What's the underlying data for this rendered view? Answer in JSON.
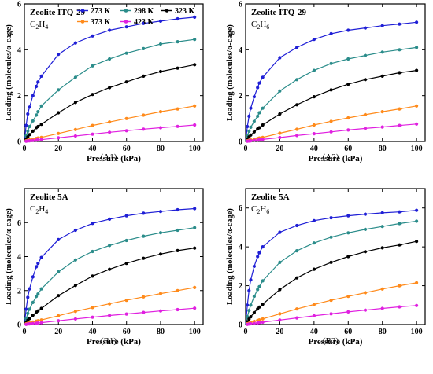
{
  "legend": {
    "series": [
      {
        "name": "273 K",
        "color": "#1f1fd6"
      },
      {
        "name": "298 K",
        "color": "#2a8c8a"
      },
      {
        "name": "323 K",
        "color": "#000000"
      },
      {
        "name": "373 K",
        "color": "#ff8a1a"
      },
      {
        "name": "423 K",
        "color": "#e020e0"
      }
    ]
  },
  "chart_data": [
    {
      "type": "scatter",
      "panel_label": "(A1)",
      "title": "Zeolite ITQ-29",
      "gas": "C2H4",
      "gas_base": "C",
      "gas_sub1": "2",
      "gas_mid": "H",
      "gas_sub2": "4",
      "xlabel": "Pressure (kPa)",
      "ylabel": "Loading (molecules/α-cage)",
      "xlim": [
        0,
        105
      ],
      "ylim": [
        0,
        6
      ],
      "xticks": [
        "0",
        "20",
        "40",
        "60",
        "80",
        "100"
      ],
      "yticks": [
        "0",
        "2",
        "4",
        "6"
      ],
      "legend_shown": true,
      "x": [
        1,
        2,
        3,
        5,
        7,
        8,
        10,
        20,
        30,
        40,
        50,
        60,
        70,
        80,
        90,
        100
      ],
      "series": [
        {
          "name": "273 K",
          "values": [
            0.7,
            1.2,
            1.5,
            2.0,
            2.4,
            2.6,
            2.85,
            3.8,
            4.3,
            4.6,
            4.85,
            5.0,
            5.15,
            5.25,
            5.35,
            5.42
          ]
        },
        {
          "name": "298 K",
          "values": [
            0.25,
            0.45,
            0.65,
            0.9,
            1.15,
            1.3,
            1.55,
            2.25,
            2.8,
            3.3,
            3.6,
            3.85,
            4.05,
            4.25,
            4.35,
            4.45
          ]
        },
        {
          "name": "323 K",
          "values": [
            0.1,
            0.2,
            0.3,
            0.45,
            0.6,
            0.65,
            0.75,
            1.25,
            1.7,
            2.05,
            2.35,
            2.6,
            2.85,
            3.05,
            3.2,
            3.35
          ]
        },
        {
          "name": "373 K",
          "values": [
            0.03,
            0.05,
            0.07,
            0.1,
            0.13,
            0.15,
            0.18,
            0.35,
            0.52,
            0.7,
            0.85,
            1.0,
            1.15,
            1.3,
            1.42,
            1.55
          ]
        },
        {
          "name": "423 K",
          "values": [
            0.01,
            0.02,
            0.03,
            0.04,
            0.06,
            0.07,
            0.08,
            0.16,
            0.24,
            0.32,
            0.4,
            0.47,
            0.54,
            0.6,
            0.66,
            0.72
          ]
        }
      ]
    },
    {
      "type": "scatter",
      "panel_label": "(A2)",
      "title": "Zeolite ITQ-29",
      "gas": "C2H6",
      "gas_base": "C",
      "gas_sub1": "2",
      "gas_mid": "H",
      "gas_sub2": "6",
      "xlabel": "Pressure (kPa)",
      "ylabel": "Loading (molecules/α-cage)",
      "xlim": [
        0,
        105
      ],
      "ylim": [
        0,
        6
      ],
      "xticks": [
        "0",
        "20",
        "40",
        "60",
        "80",
        "100"
      ],
      "yticks": [
        "0",
        "2",
        "4",
        "6"
      ],
      "legend_shown": false,
      "x": [
        1,
        2,
        3,
        5,
        7,
        8,
        10,
        20,
        30,
        40,
        50,
        60,
        70,
        80,
        90,
        100
      ],
      "series": [
        {
          "name": "273 K",
          "values": [
            0.65,
            1.1,
            1.45,
            1.95,
            2.35,
            2.55,
            2.8,
            3.65,
            4.1,
            4.45,
            4.7,
            4.85,
            4.95,
            5.05,
            5.12,
            5.2
          ]
        },
        {
          "name": "298 K",
          "values": [
            0.25,
            0.45,
            0.62,
            0.88,
            1.1,
            1.25,
            1.45,
            2.2,
            2.7,
            3.1,
            3.4,
            3.6,
            3.75,
            3.9,
            4.0,
            4.1
          ]
        },
        {
          "name": "323 K",
          "values": [
            0.1,
            0.2,
            0.28,
            0.42,
            0.55,
            0.6,
            0.72,
            1.2,
            1.6,
            1.95,
            2.25,
            2.5,
            2.7,
            2.85,
            3.0,
            3.1
          ]
        },
        {
          "name": "373 K",
          "values": [
            0.03,
            0.05,
            0.07,
            0.1,
            0.13,
            0.15,
            0.18,
            0.36,
            0.53,
            0.72,
            0.88,
            1.03,
            1.17,
            1.3,
            1.42,
            1.55
          ]
        },
        {
          "name": "423 K",
          "values": [
            0.01,
            0.02,
            0.03,
            0.05,
            0.06,
            0.07,
            0.09,
            0.17,
            0.26,
            0.34,
            0.42,
            0.5,
            0.57,
            0.63,
            0.7,
            0.76
          ]
        }
      ]
    },
    {
      "type": "scatter",
      "panel_label": "(B1)",
      "title": "Zeolite 5A",
      "gas": "C2H4",
      "gas_base": "C",
      "gas_sub1": "2",
      "gas_mid": "H",
      "gas_sub2": "4",
      "xlabel": "Pressure (kPa)",
      "ylabel": "Loading (molecules/α-cage)",
      "xlim": [
        0,
        105
      ],
      "ylim": [
        0,
        8
      ],
      "xticks": [
        "0",
        "20",
        "40",
        "60",
        "80",
        "100"
      ],
      "yticks": [
        "0",
        "2",
        "4",
        "6"
      ],
      "legend_shown": false,
      "x": [
        1,
        2,
        3,
        5,
        7,
        8,
        10,
        20,
        30,
        40,
        50,
        60,
        70,
        80,
        90,
        100
      ],
      "series": [
        {
          "name": "273 K",
          "values": [
            0.9,
            1.6,
            2.1,
            2.8,
            3.4,
            3.6,
            3.95,
            5.0,
            5.55,
            5.95,
            6.2,
            6.4,
            6.55,
            6.65,
            6.75,
            6.82
          ]
        },
        {
          "name": "298 K",
          "values": [
            0.35,
            0.65,
            0.9,
            1.3,
            1.65,
            1.8,
            2.1,
            3.1,
            3.8,
            4.3,
            4.65,
            4.95,
            5.2,
            5.4,
            5.55,
            5.7
          ]
        },
        {
          "name": "323 K",
          "values": [
            0.12,
            0.25,
            0.35,
            0.55,
            0.72,
            0.8,
            0.95,
            1.7,
            2.3,
            2.85,
            3.25,
            3.6,
            3.9,
            4.15,
            4.35,
            4.5
          ]
        },
        {
          "name": "373 K",
          "values": [
            0.04,
            0.07,
            0.1,
            0.15,
            0.2,
            0.22,
            0.27,
            0.52,
            0.77,
            1.0,
            1.22,
            1.43,
            1.63,
            1.82,
            2.0,
            2.18
          ]
        },
        {
          "name": "423 K",
          "values": [
            0.01,
            0.03,
            0.04,
            0.06,
            0.08,
            0.09,
            0.11,
            0.22,
            0.33,
            0.43,
            0.53,
            0.62,
            0.71,
            0.8,
            0.88,
            0.96
          ]
        }
      ]
    },
    {
      "type": "scatter",
      "panel_label": "(B2)",
      "title": "Zeolite 5A",
      "gas": "C2H6",
      "gas_base": "C",
      "gas_sub1": "2",
      "gas_mid": "H",
      "gas_sub2": "6",
      "xlabel": "Pressure (kPa)",
      "ylabel": "Loading (molecules/α-cage)",
      "xlim": [
        0,
        105
      ],
      "ylim": [
        0,
        7
      ],
      "xticks": [
        "0",
        "20",
        "40",
        "60",
        "80",
        "100"
      ],
      "yticks": [
        "0",
        "2",
        "4",
        "6"
      ],
      "legend_shown": false,
      "x": [
        1,
        2,
        3,
        5,
        7,
        8,
        10,
        20,
        30,
        40,
        50,
        60,
        70,
        80,
        90,
        100
      ],
      "series": [
        {
          "name": "273 K",
          "values": [
            1.0,
            1.75,
            2.3,
            3.0,
            3.5,
            3.7,
            4.0,
            4.75,
            5.1,
            5.35,
            5.5,
            5.6,
            5.68,
            5.75,
            5.8,
            5.88
          ]
        },
        {
          "name": "298 K",
          "values": [
            0.4,
            0.72,
            1.0,
            1.45,
            1.8,
            1.95,
            2.25,
            3.2,
            3.8,
            4.2,
            4.5,
            4.72,
            4.9,
            5.05,
            5.2,
            5.32
          ]
        },
        {
          "name": "323 K",
          "values": [
            0.14,
            0.28,
            0.4,
            0.62,
            0.8,
            0.9,
            1.05,
            1.8,
            2.4,
            2.85,
            3.2,
            3.5,
            3.75,
            3.95,
            4.1,
            4.28
          ]
        },
        {
          "name": "373 K",
          "values": [
            0.04,
            0.07,
            0.1,
            0.16,
            0.21,
            0.24,
            0.29,
            0.55,
            0.8,
            1.03,
            1.25,
            1.45,
            1.64,
            1.83,
            2.0,
            2.15
          ]
        },
        {
          "name": "423 K",
          "values": [
            0.01,
            0.03,
            0.04,
            0.06,
            0.08,
            0.1,
            0.12,
            0.23,
            0.34,
            0.45,
            0.55,
            0.65,
            0.74,
            0.83,
            0.91,
            0.98
          ]
        }
      ]
    }
  ]
}
